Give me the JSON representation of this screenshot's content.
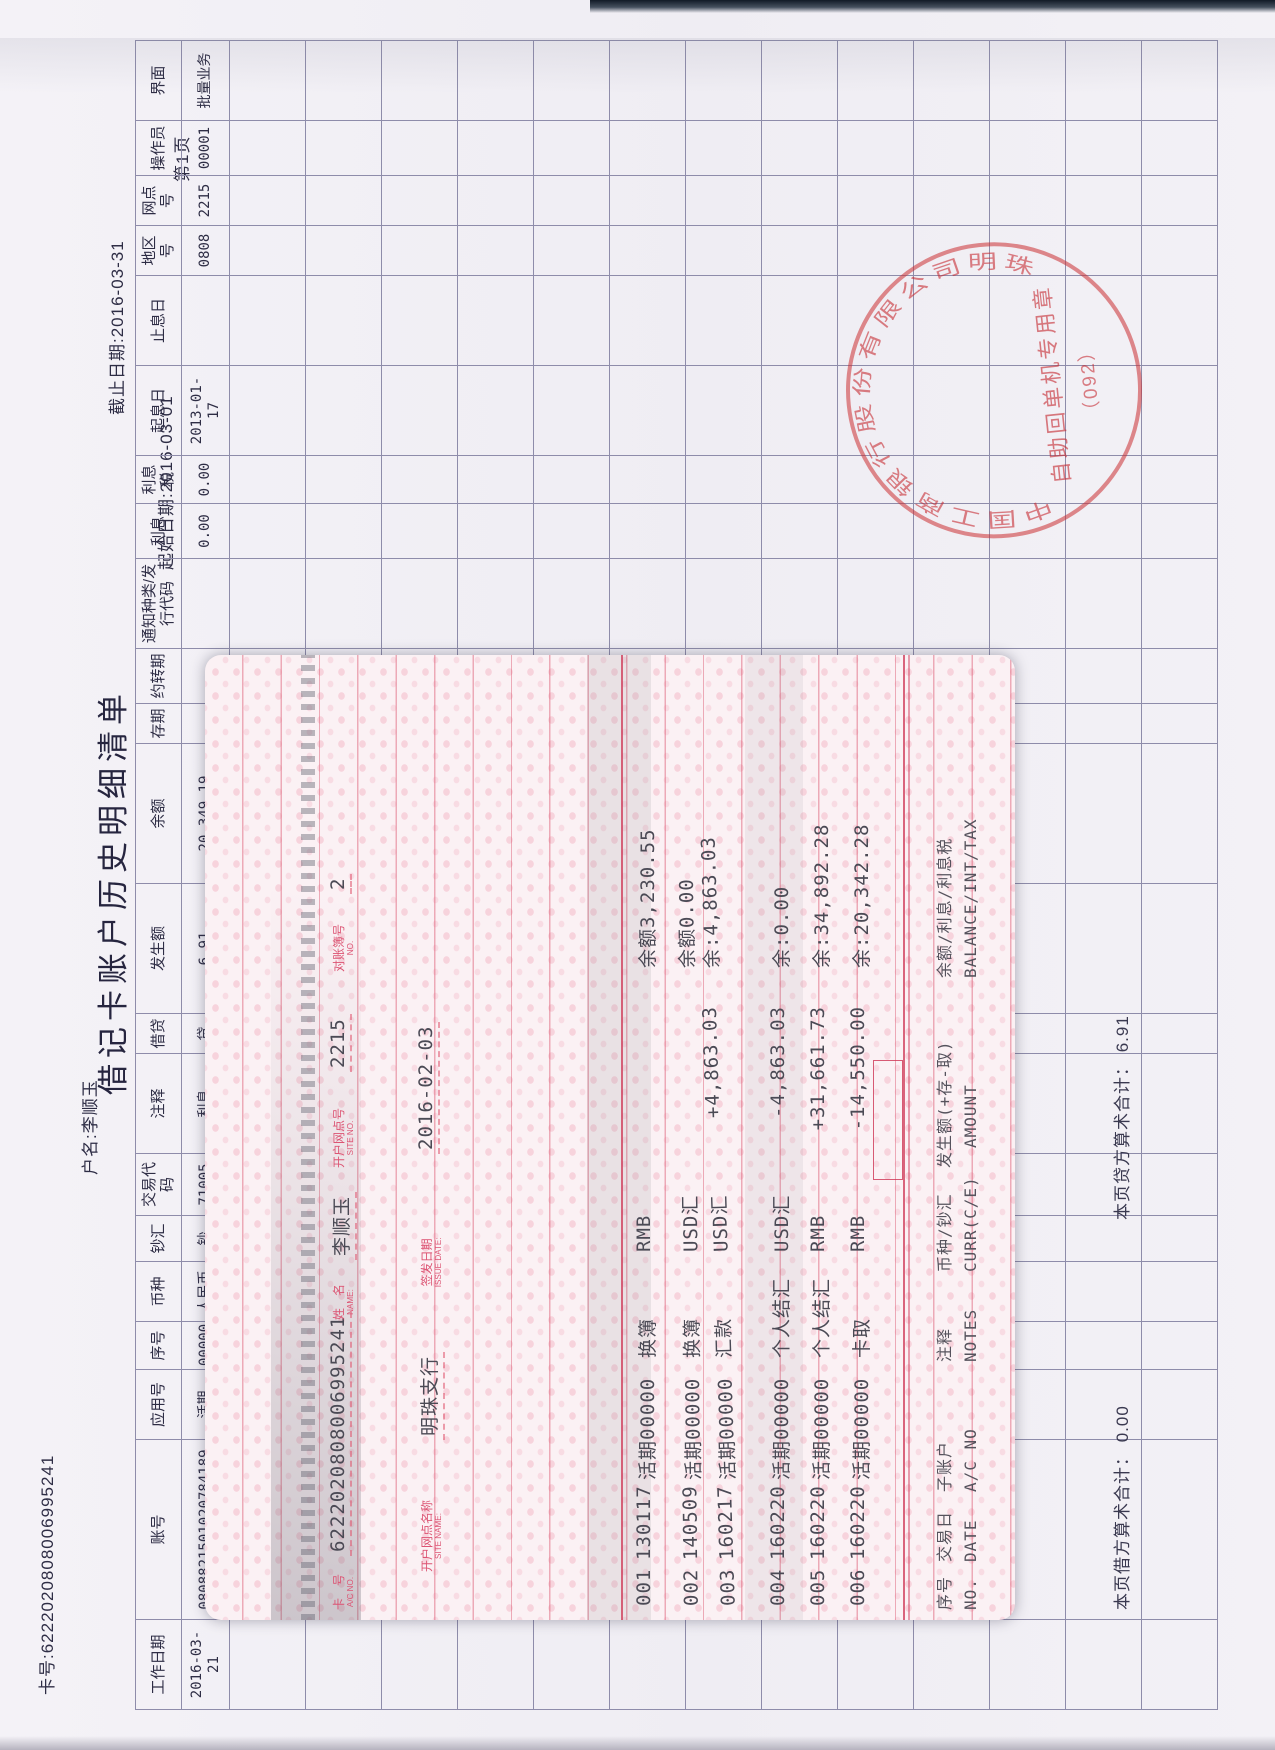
{
  "statement": {
    "card_no": "卡号:6222020808006995241",
    "holder": "户名:李顺玉",
    "title": "借记卡账户历史明细清单",
    "start_date": "起始日期:2016-03-01",
    "end_date": "截止日期:2016-03-31",
    "page": "第1页",
    "columns": [
      "工作日期",
      "账号",
      "应用号",
      "序号",
      "币种",
      "钞汇",
      "交易代码",
      "注释",
      "借贷",
      "发生额",
      "余额",
      "存期",
      "约转期",
      "通知种类/发行代码",
      "利息",
      "利息税",
      "起息日",
      "止息日",
      "地区号",
      "网点号",
      "操作员",
      "界面"
    ],
    "rows": [
      [
        "2016-03-21",
        "0808821501020784189",
        "活期",
        "00000",
        "人民币",
        "钞",
        "71005",
        "利息",
        "贷",
        "6.91",
        "20,349.19",
        "",
        "",
        "",
        "0.00",
        "0.00",
        "2013-01-17",
        "",
        "0808",
        "2215",
        "00001",
        "批量业务"
      ]
    ],
    "empty_rows": 13,
    "debit_total": "本页借方算术合计： 0.00",
    "credit_total": "本页贷方算术合计： 6.91"
  },
  "stamp": {
    "ring": "中国工商银行股份有限公司明珠支行",
    "inner1": "自助回单机专用章",
    "inner2": "（092）"
  },
  "passbook": {
    "header_fields": [
      {
        "zh": "卡　号",
        "en": "A/C NO.",
        "value": "6222020808006995241"
      },
      {
        "zh": "姓　名",
        "en": "NAME:",
        "value": "李顺玉"
      },
      {
        "zh": "开户网点号",
        "en": "SITE NO.",
        "value": "2215"
      },
      {
        "zh": "对账簿号",
        "en": "NO.",
        "value": "2"
      }
    ],
    "header_fields2": [
      {
        "zh": "开户网点名称",
        "en": "SITE NAME:",
        "value": "明珠支行"
      },
      {
        "zh": "签发日期",
        "en": "ISSUE DATE:",
        "value": "2016-02-03"
      }
    ],
    "transactions": [
      {
        "no": "001",
        "date": "130117",
        "account": "活期00000",
        "note": "换簿",
        "currency": "RMB",
        "amount": "",
        "balance": "余额3,230.55"
      },
      {
        "no": "002",
        "date": "140509",
        "account": "活期00000",
        "note": "换簿",
        "currency": "USD汇",
        "amount": "",
        "balance": "余额0.00"
      },
      {
        "no": "003",
        "date": "160217",
        "account": "活期00000",
        "note": "汇款",
        "currency": "USD汇",
        "amount": "+4,863.03",
        "balance": "余:4,863.03"
      },
      {
        "no": "004",
        "date": "160220",
        "account": "活期00000",
        "note": "个人结汇",
        "currency": "USD汇",
        "amount": "-4,863.03",
        "balance": "余:0.00"
      },
      {
        "no": "005",
        "date": "160220",
        "account": "活期00000",
        "note": "个人结汇",
        "currency": "RMB",
        "amount": "+31,661.73",
        "balance": "余:34,892.28"
      },
      {
        "no": "006",
        "date": "160220",
        "account": "活期00000",
        "note": "卡取",
        "currency": "RMB",
        "amount": "-14,550.00",
        "balance": "余:20,342.28"
      }
    ],
    "footer_zh": [
      "序号",
      "交易日",
      "子账户",
      "注释",
      "币种/钞汇",
      "发生额(+存-取)",
      "余额/利息/利息税"
    ],
    "footer_en": [
      "NO.",
      "DATE",
      "A/C NO",
      "NOTES",
      "CURR(C/E)",
      "AMOUNT",
      "BALANCE/INT/TAX"
    ]
  }
}
